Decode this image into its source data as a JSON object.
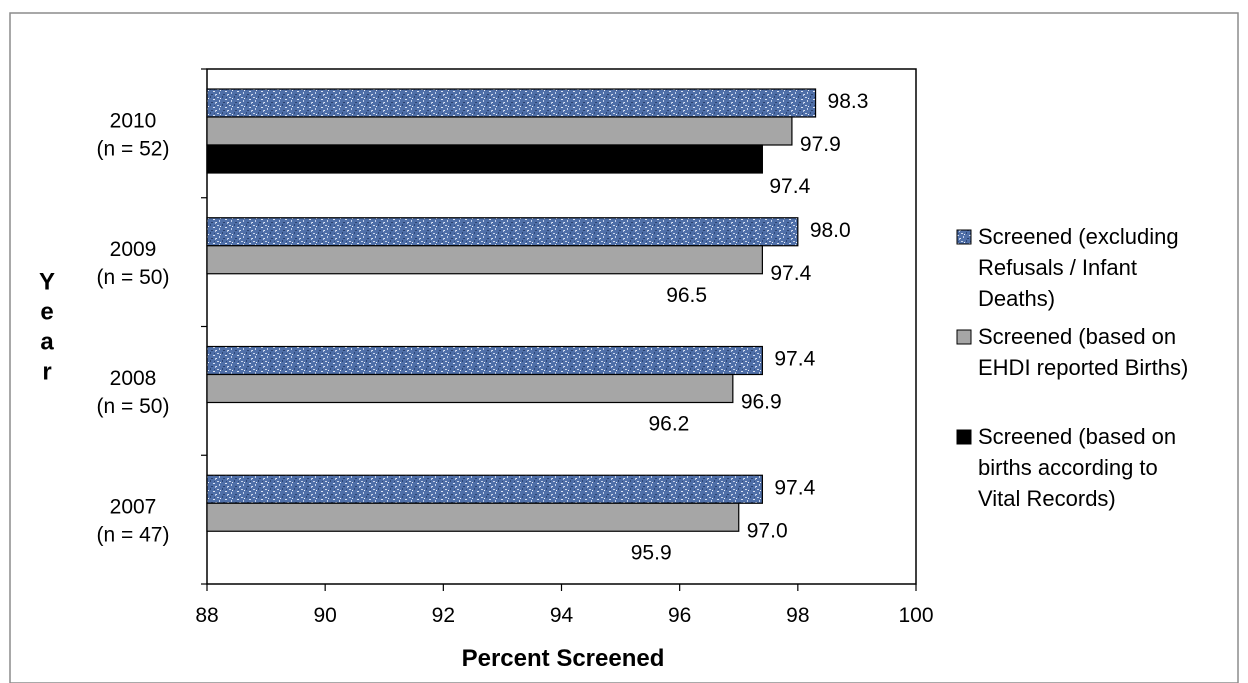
{
  "chart_data": {
    "type": "bar",
    "orientation": "horizontal",
    "xlabel": "Percent Screened",
    "ylabel": "Year",
    "xlim": [
      88,
      100
    ],
    "x_ticks": [
      "88",
      "90",
      "92",
      "94",
      "96",
      "98",
      "100"
    ],
    "grid": false,
    "legend_position": "right",
    "categories": [
      {
        "line1": "2010",
        "line2": "(n = 52)"
      },
      {
        "line1": "2009",
        "line2": "(n = 50)"
      },
      {
        "line1": "2008",
        "line2": "(n = 50)"
      },
      {
        "line1": "2007",
        "line2": "(n = 47)"
      }
    ],
    "series": [
      {
        "name": "Screened (excluding Refusals / Infant Deaths)",
        "legend_lines": [
          "Screened (excluding",
          "Refusals / Infant",
          "Deaths)"
        ],
        "color": "#4f6fa8",
        "pattern": "speckled",
        "values": [
          98.3,
          98.0,
          97.4,
          97.4
        ],
        "labels": [
          "98.3",
          "98.0",
          "97.4",
          "97.4"
        ]
      },
      {
        "name": "Screened (based on EHDI reported Births)",
        "legend_lines": [
          "Screened (based on",
          "EHDI reported Births)"
        ],
        "color": "#a6a6a6",
        "values": [
          97.9,
          97.4,
          96.9,
          97.0
        ],
        "labels": [
          "97.9",
          "97.4",
          "96.9",
          "97.0"
        ]
      },
      {
        "name": "Screened (based on births according to Vital Records)",
        "legend_lines": [
          "Screened (based on",
          "births according to",
          "Vital Records)"
        ],
        "color": "#000000",
        "values": [
          97.4,
          96.5,
          96.2,
          95.9
        ],
        "labels": [
          "97.4",
          "96.5",
          "96.2",
          "95.9"
        ]
      }
    ]
  }
}
